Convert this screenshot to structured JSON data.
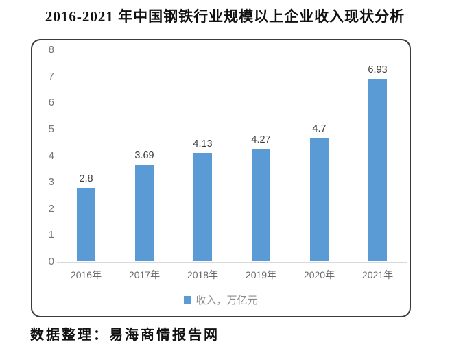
{
  "source": "数据整理：易海商情报告网",
  "colors": {
    "bar": "#5B9BD5",
    "axis_line": "#d9d9d9",
    "frame_border": "#3a3a3a",
    "tick_label": "#767676",
    "data_label": "#3d3d3d",
    "legend_label": "#8c8c8c"
  },
  "chart_data": {
    "type": "bar",
    "title": "2016-2021 年中国钢铁行业规模以上企业收入现状分析",
    "categories": [
      "2016年",
      "2017年",
      "2018年",
      "2019年",
      "2020年",
      "2021年"
    ],
    "values": [
      2.8,
      3.69,
      4.13,
      4.27,
      4.7,
      6.93
    ],
    "series": [
      {
        "name": "收入，万亿元",
        "values": [
          2.8,
          3.69,
          4.13,
          4.27,
          4.7,
          6.93
        ]
      }
    ],
    "legend": "收入，万亿元",
    "legend_position": "bottom",
    "xlabel": "",
    "ylabel": "",
    "ylim": [
      0,
      8
    ],
    "yticks": [
      0,
      1,
      2,
      3,
      4,
      5,
      6,
      7,
      8
    ],
    "grid": false,
    "data_labels_shown": [
      "2.8",
      "3.69",
      "4.13",
      "4.27",
      "4.7",
      "6.93"
    ]
  }
}
